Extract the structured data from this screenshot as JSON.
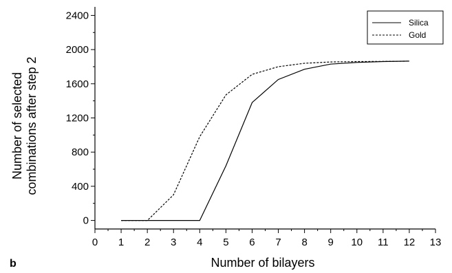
{
  "chart_data": {
    "type": "line",
    "xlabel": "Number of bilayers",
    "ylabel_lines": [
      "Number of selected",
      "combinations after step 2"
    ],
    "panel_label": "b",
    "xlim": [
      0,
      13
    ],
    "ylim": [
      -100,
      2500
    ],
    "xticks": [
      0,
      1,
      2,
      3,
      4,
      5,
      6,
      7,
      8,
      9,
      10,
      11,
      12,
      13
    ],
    "yticks": [
      0,
      400,
      800,
      1200,
      1600,
      2000,
      2400
    ],
    "grid": false,
    "legend_position": "top-right",
    "series": [
      {
        "name": "Silica",
        "style": "solid",
        "x": [
          1,
          2,
          3,
          4,
          5,
          6,
          7,
          8,
          9,
          10,
          11,
          12
        ],
        "y": [
          0,
          0,
          0,
          0,
          640,
          1380,
          1650,
          1770,
          1830,
          1850,
          1860,
          1865
        ]
      },
      {
        "name": "Gold",
        "style": "dashed",
        "x": [
          1,
          2,
          3,
          4,
          5,
          6,
          7,
          8,
          9,
          10,
          11,
          12
        ],
        "y": [
          0,
          0,
          300,
          980,
          1470,
          1710,
          1800,
          1840,
          1855,
          1860,
          1862,
          1865
        ]
      }
    ]
  }
}
